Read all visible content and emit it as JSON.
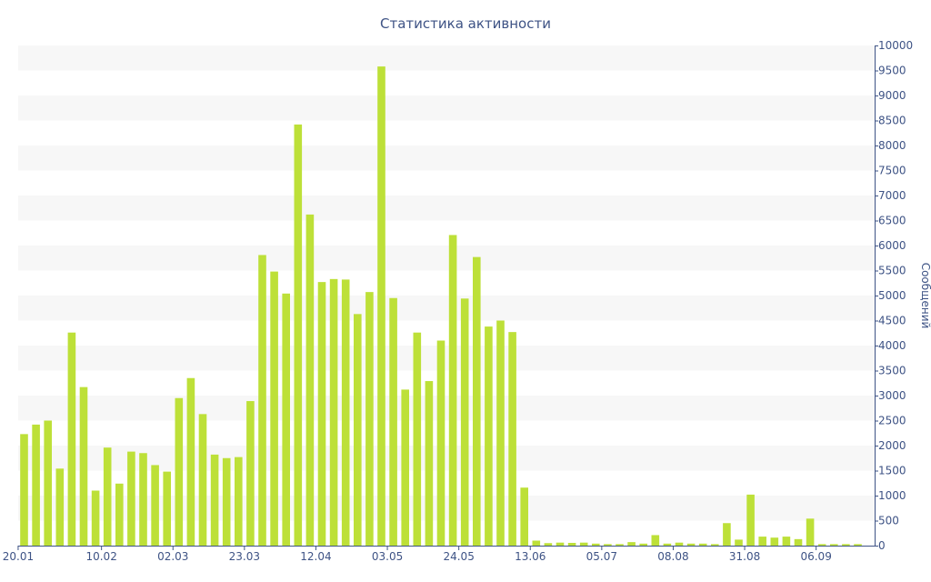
{
  "chart_data": {
    "type": "bar",
    "title": "Статистика активности",
    "xlabel": "",
    "ylabel": "Сообщений",
    "ylim": [
      0,
      10000
    ],
    "y_axis_side": "right",
    "grid": "horizontal-bands",
    "legend": "none",
    "bar_color": "#bde038",
    "band_color": "#f7f7f7",
    "text_color": "#3e5385",
    "axis_color": "#3e5385",
    "yticks": [
      "0",
      "500",
      "1000",
      "1500",
      "2000",
      "2500",
      "3000",
      "3500",
      "4000",
      "4500",
      "5000",
      "5500",
      "6000",
      "6500",
      "7000",
      "7500",
      "8000",
      "8500",
      "9000",
      "9500",
      "10000"
    ],
    "xticks": [
      {
        "label": "20.01",
        "index": -0.5
      },
      {
        "label": "10.02",
        "index": 6.5
      },
      {
        "label": "02.03",
        "index": 12.5
      },
      {
        "label": "23.03",
        "index": 18.5
      },
      {
        "label": "12.04",
        "index": 24.5
      },
      {
        "label": "03.05",
        "index": 30.5
      },
      {
        "label": "24.05",
        "index": 36.5
      },
      {
        "label": "13.06",
        "index": 42.5
      },
      {
        "label": "05.07",
        "index": 48.5
      },
      {
        "label": "08.08",
        "index": 54.5
      },
      {
        "label": "31.08",
        "index": 60.5
      },
      {
        "label": "06.09",
        "index": 66.5
      }
    ],
    "values": [
      2230,
      2420,
      2500,
      1540,
      4260,
      3170,
      1100,
      1960,
      1240,
      1880,
      1850,
      1610,
      1480,
      2950,
      3350,
      2630,
      1820,
      1750,
      1770,
      2890,
      5810,
      5480,
      5040,
      8420,
      6620,
      5270,
      5330,
      5320,
      4630,
      5070,
      9580,
      4950,
      3120,
      4260,
      3290,
      4100,
      6210,
      4940,
      5770,
      4380,
      4500,
      4270,
      1160,
      100,
      50,
      60,
      55,
      60,
      40,
      30,
      30,
      70,
      40,
      210,
      40,
      60,
      40,
      40,
      30,
      450,
      120,
      1020,
      180,
      160,
      180,
      130,
      540,
      30,
      30,
      30,
      30
    ]
  }
}
